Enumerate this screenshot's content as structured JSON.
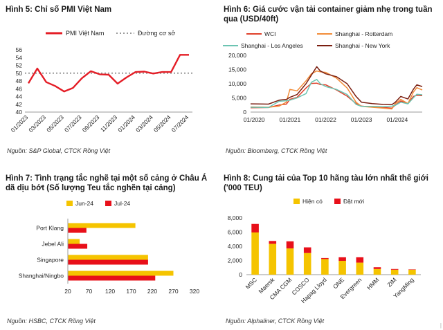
{
  "chart_data": [
    {
      "type": "line",
      "title": "Hình 5: Chỉ số PMI Việt Nam",
      "source": "Nguồn: S&P Global, CTCK Rồng Việt",
      "ylim": [
        40,
        56
      ],
      "yticks": [
        40,
        42,
        44,
        46,
        48,
        50,
        52,
        54,
        56
      ],
      "xlabels": [
        "01/2023",
        "03/2023",
        "05/2023",
        "07/2023",
        "09/2023",
        "11/2023",
        "01/2024",
        "03/2024",
        "05/2024",
        "07/2024"
      ],
      "grid": false,
      "legend_position": "top",
      "series": [
        {
          "name": "PMI Việt Nam",
          "color": "#e41d26",
          "values": [
            47.4,
            51.2,
            47.7,
            46.7,
            45.3,
            46.2,
            48.7,
            50.5,
            49.7,
            49.6,
            47.3,
            48.9,
            50.3,
            50.4,
            49.9,
            50.3,
            50.3,
            54.7,
            54.7
          ]
        },
        {
          "name": "Đường cơ sở",
          "color": "#9a9a9a",
          "style": "dotted",
          "constant": 50
        }
      ]
    },
    {
      "type": "line",
      "title": "Hình 6: Giá cước vận tải container giảm nhẹ trong tuần qua (USD/40ft)",
      "source": "Nguồn: Bloomberg, CTCK Rồng Việt",
      "ylim": [
        0,
        20000
      ],
      "yticks": [
        0,
        5000,
        10000,
        15000,
        20000
      ],
      "ytick_labels": [
        "0",
        "5,000",
        "10,000",
        "15,000",
        "20,000"
      ],
      "xlabels": [
        "01/2020",
        "01/2021",
        "01/2022",
        "01/2023",
        "01/2024"
      ],
      "xlim_years": [
        2019.9,
        2024.7
      ],
      "grid": false,
      "legend_position": "top",
      "series": [
        {
          "name": "WCI",
          "color": "#e0402a",
          "x": [
            2019.9,
            2020.4,
            2020.7,
            2020.9,
            2021.0,
            2021.2,
            2021.45,
            2021.6,
            2021.75,
            2021.85,
            2022.0,
            2022.3,
            2022.6,
            2022.85,
            2023.0,
            2023.3,
            2023.6,
            2023.85,
            2023.95,
            2024.1,
            2024.3,
            2024.45,
            2024.55,
            2024.7
          ],
          "values": [
            1500,
            1600,
            2500,
            2800,
            4500,
            5200,
            8500,
            10100,
            10200,
            9700,
            9600,
            7800,
            5600,
            3000,
            2100,
            1750,
            1600,
            1400,
            2500,
            3900,
            3000,
            5500,
            5900,
            5800
          ]
        },
        {
          "name": "Shanghai - Rotterdam",
          "color": "#f28c38",
          "x": [
            2019.9,
            2020.4,
            2020.7,
            2020.9,
            2021.0,
            2021.2,
            2021.45,
            2021.6,
            2021.75,
            2021.85,
            2022.0,
            2022.3,
            2022.6,
            2022.85,
            2023.0,
            2023.3,
            2023.6,
            2023.85,
            2023.95,
            2024.1,
            2024.3,
            2024.45,
            2024.55,
            2024.7
          ],
          "values": [
            1800,
            1700,
            2100,
            3500,
            8000,
            7500,
            11000,
            13500,
            14500,
            14200,
            14000,
            12000,
            8500,
            3500,
            2000,
            1700,
            1400,
            1100,
            3000,
            4500,
            3000,
            7000,
            8600,
            7800
          ]
        },
        {
          "name": "Shanghai - Los Angeles",
          "color": "#6cc4b2",
          "x": [
            2019.9,
            2020.4,
            2020.7,
            2020.9,
            2021.0,
            2021.2,
            2021.45,
            2021.6,
            2021.75,
            2021.85,
            2022.0,
            2022.3,
            2022.6,
            2022.85,
            2023.0,
            2023.3,
            2023.6,
            2023.85,
            2023.95,
            2024.1,
            2024.3,
            2024.45,
            2024.55,
            2024.7
          ],
          "values": [
            1700,
            1600,
            3800,
            4000,
            4200,
            5000,
            6500,
            10500,
            11500,
            10000,
            9000,
            8000,
            6200,
            2700,
            2000,
            2000,
            1900,
            2100,
            2400,
            3500,
            2900,
            5000,
            6300,
            6100
          ]
        },
        {
          "name": "Shanghai - New York",
          "color": "#7a1e10",
          "x": [
            2019.9,
            2020.4,
            2020.7,
            2020.9,
            2021.0,
            2021.2,
            2021.45,
            2021.6,
            2021.75,
            2021.85,
            2022.0,
            2022.3,
            2022.6,
            2022.85,
            2023.0,
            2023.3,
            2023.6,
            2023.85,
            2023.95,
            2024.1,
            2024.3,
            2024.45,
            2024.55,
            2024.7
          ],
          "values": [
            2900,
            2800,
            4200,
            4500,
            5200,
            6200,
            10000,
            13000,
            16000,
            14500,
            13500,
            12500,
            10000,
            5500,
            3500,
            3000,
            2700,
            2600,
            3500,
            5500,
            4600,
            8000,
            9600,
            9000
          ]
        }
      ]
    },
    {
      "type": "bar",
      "orientation": "horizontal",
      "title": "Hình 7: Tình trạng tắc nghẽ tại một số cảng ở Châu Á dã dịu bớt (Số lượng Teu tắc nghẽn tại cảng)",
      "source": "Nguồn: HSBC, CTCK Rồng Việt",
      "categories": [
        "Port Klang",
        "Jebel Ali",
        "Singapore",
        "Shanghai/Ningbo"
      ],
      "xlim": [
        20,
        320
      ],
      "xticks": [
        20,
        70,
        120,
        170,
        220,
        270,
        320
      ],
      "grid": false,
      "legend_position": "top-left",
      "series": [
        {
          "name": "Jun-24",
          "color": "#f5c400",
          "values": [
            180,
            48,
            210,
            270
          ]
        },
        {
          "name": "Jul-24",
          "color": "#e8101a",
          "values": [
            64,
            66,
            210,
            227
          ]
        }
      ]
    },
    {
      "type": "bar",
      "orientation": "vertical",
      "stacked": true,
      "title": "Hình 8: Cung tải của Top 10 hãng tàu lớn nhất thế giới ('000 TEU)",
      "source": "Nguồn: Alphaliner, CTCK Rồng Việt",
      "categories": [
        "MSC",
        "Maersk",
        "CMA CGM",
        "COSCO",
        "Hapag Lloyd",
        "ONE",
        "Evergreen",
        "HMM",
        "ZIM",
        "YangMing"
      ],
      "ylim": [
        0,
        8000
      ],
      "yticks": [
        0,
        2000,
        4000,
        6000,
        8000
      ],
      "ytick_labels": [
        "0",
        "2,000",
        "4,000",
        "6,000",
        "8,000"
      ],
      "grid": false,
      "legend_position": "top-left",
      "series": [
        {
          "name": "Hiện có",
          "color": "#f5c400",
          "values": [
            5950,
            4350,
            3700,
            3050,
            2200,
            1950,
            1700,
            800,
            700,
            700
          ]
        },
        {
          "name": "Đặt mới",
          "color": "#e8101a",
          "values": [
            1200,
            400,
            1000,
            800,
            150,
            500,
            750,
            250,
            100,
            50
          ]
        }
      ]
    }
  ]
}
